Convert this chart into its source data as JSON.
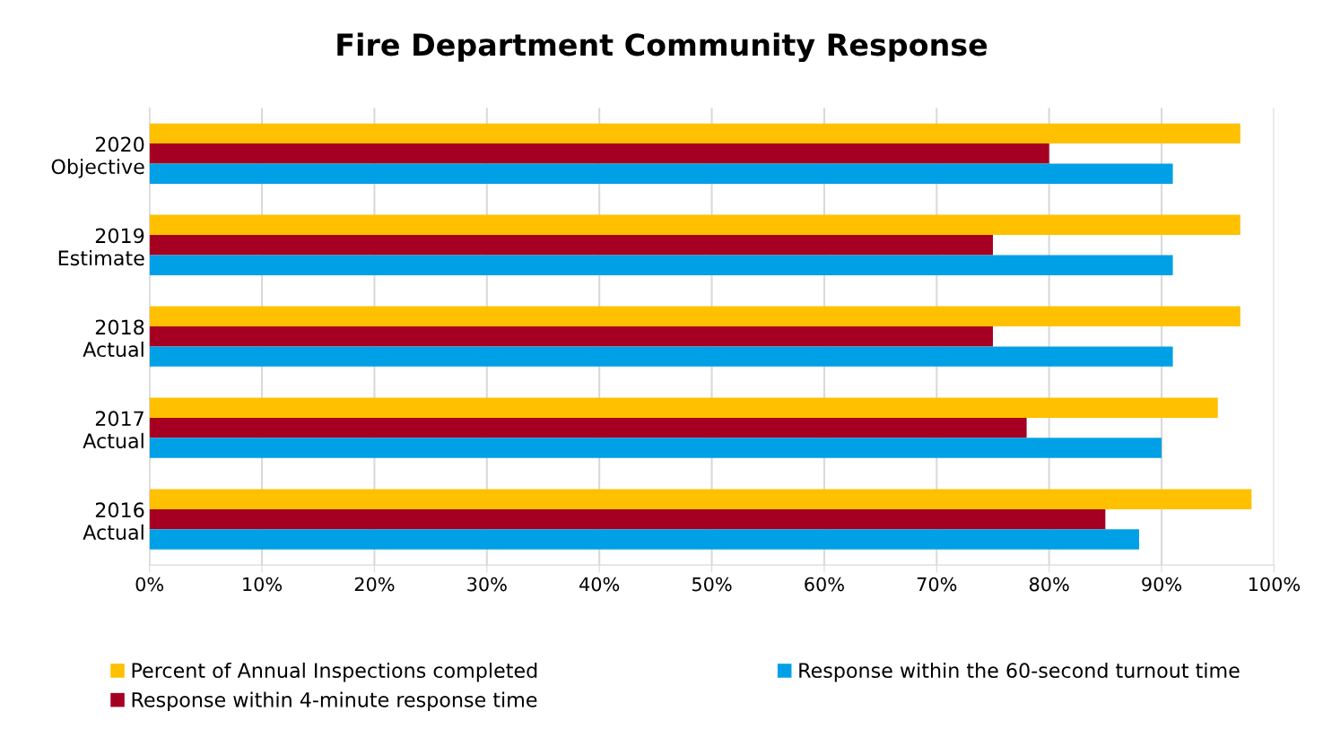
{
  "chart_data": {
    "type": "bar",
    "orientation": "horizontal",
    "title": "Fire Department Community Response",
    "categories": [
      "2020\nObjective",
      "2019\nEstimate",
      "2018\nActual",
      "2017\nActual",
      "2016\nActual"
    ],
    "series": [
      {
        "name": "Percent of Annual Inspections completed",
        "color": "#ffc000",
        "values": [
          97,
          97,
          97,
          95,
          98
        ]
      },
      {
        "name": "Response within 4-minute response time",
        "color": "#a50021",
        "values": [
          80,
          75,
          75,
          78,
          85
        ]
      },
      {
        "name": "Response within the 60-second turnout time",
        "color": "#00a0e6",
        "values": [
          91,
          91,
          91,
          90,
          88
        ]
      }
    ],
    "xlim": [
      0,
      100
    ],
    "xticks": [
      {
        "value": 0,
        "label": "0%"
      },
      {
        "value": 10,
        "label": "10%"
      },
      {
        "value": 20,
        "label": "20%"
      },
      {
        "value": 30,
        "label": "30%"
      },
      {
        "value": 40,
        "label": "40%"
      },
      {
        "value": 50,
        "label": "50%"
      },
      {
        "value": 60,
        "label": "60%"
      },
      {
        "value": 70,
        "label": "70%"
      },
      {
        "value": 80,
        "label": "80%"
      },
      {
        "value": 90,
        "label": "90%"
      },
      {
        "value": 100,
        "label": "100%"
      }
    ],
    "grid": "x",
    "legend": "bottom"
  }
}
